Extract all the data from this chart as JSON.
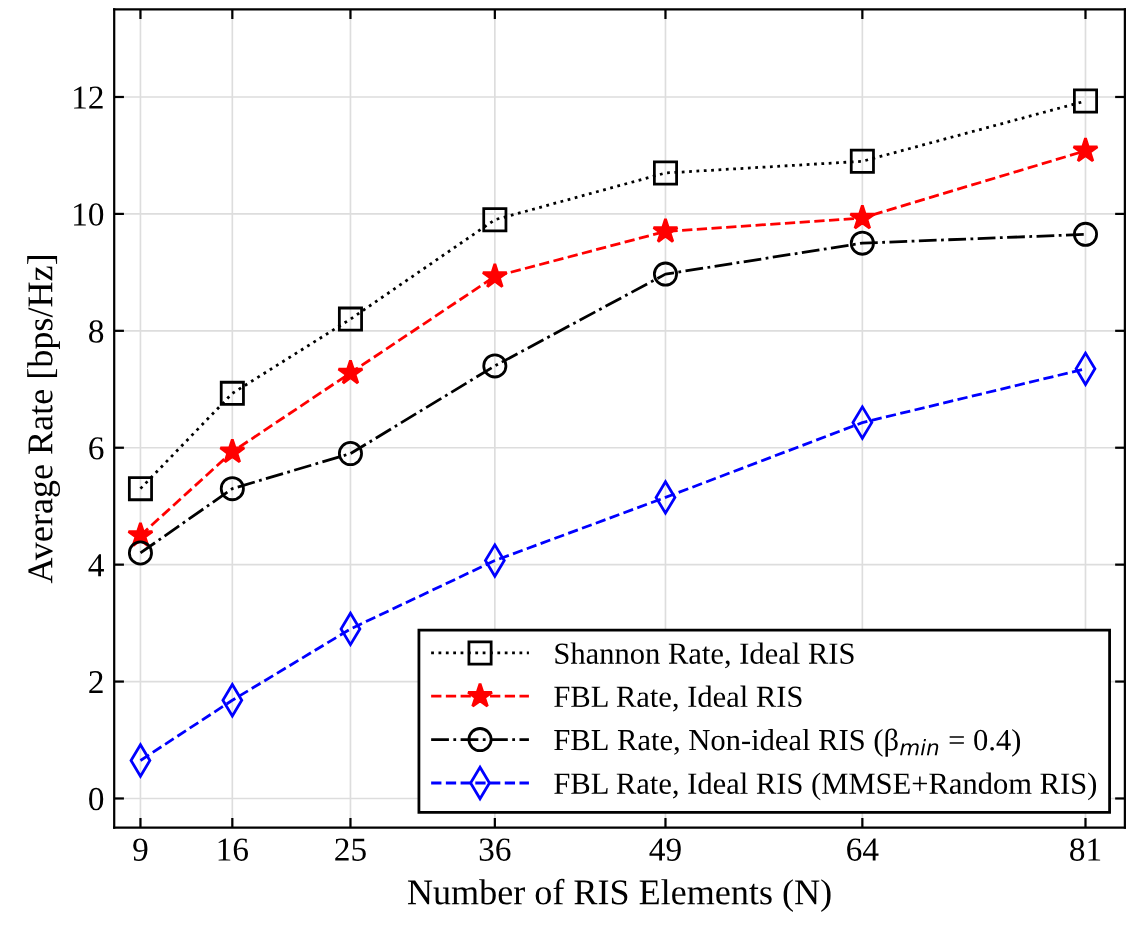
{
  "chart_data": {
    "type": "line",
    "xlabel": "Number of RIS Elements (N)",
    "ylabel": "Average Rate [bps/Hz]",
    "x": [
      9,
      16,
      25,
      36,
      49,
      64,
      81
    ],
    "xlim": [
      7,
      84
    ],
    "xticks": [
      9,
      16,
      25,
      36,
      49,
      64,
      81
    ],
    "ylim": [
      -0.5,
      13.5
    ],
    "yticks": [
      0,
      2,
      4,
      6,
      8,
      10,
      12
    ],
    "grid": true,
    "legend": "bottom right",
    "series": [
      {
        "name": "Shannon Rate, Ideal RIS",
        "color": "#000000",
        "marker": "square",
        "line_style": "dotted",
        "values": [
          5.3,
          6.93,
          8.2,
          9.9,
          10.7,
          10.9,
          11.93
        ]
      },
      {
        "name": "FBL Rate, Ideal RIS",
        "color": "#ff0000",
        "marker": "star",
        "line_style": "dashed",
        "values": [
          4.5,
          5.93,
          7.28,
          8.93,
          9.7,
          9.93,
          11.08
        ]
      },
      {
        "name": "FBL Rate, Non-ideal RIS (β$_{min}$ = 0.4)",
        "color": "#000000",
        "marker": "circle",
        "line_style": "dashdot",
        "values": [
          4.2,
          5.3,
          5.9,
          7.4,
          8.97,
          9.5,
          9.65
        ]
      },
      {
        "name": "FBL Rate, Ideal RIS (MMSE+Random RIS)",
        "color": "#0000ff",
        "marker": "diamond",
        "line_style": "dashed",
        "values": [
          0.65,
          1.68,
          2.9,
          4.07,
          5.15,
          6.43,
          7.35
        ]
      }
    ]
  }
}
